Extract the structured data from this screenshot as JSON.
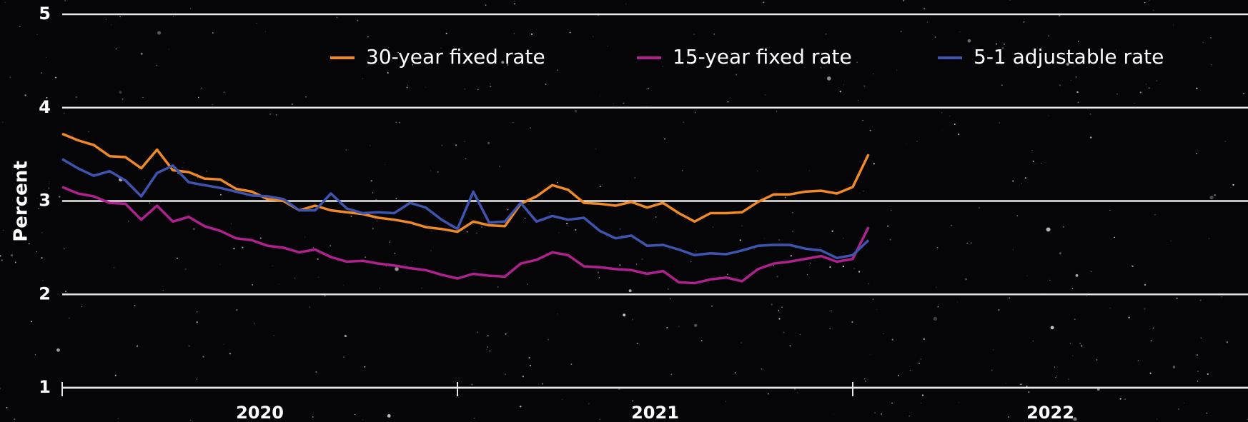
{
  "chart_data": {
    "type": "line",
    "y_label": "Percent",
    "x": [
      2020.0,
      2020.04,
      2020.08,
      2020.12,
      2020.16,
      2020.2,
      2020.24,
      2020.28,
      2020.32,
      2020.36,
      2020.4,
      2020.44,
      2020.48,
      2020.52,
      2020.56,
      2020.6,
      2020.64,
      2020.68,
      2020.72,
      2020.76,
      2020.8,
      2020.84,
      2020.88,
      2020.92,
      2020.96,
      2021.0,
      2021.04,
      2021.08,
      2021.12,
      2021.16,
      2021.2,
      2021.24,
      2021.28,
      2021.32,
      2021.36,
      2021.4,
      2021.44,
      2021.48,
      2021.52,
      2021.56,
      2021.6,
      2021.64,
      2021.68,
      2021.72,
      2021.76,
      2021.8,
      2021.84,
      2021.88,
      2021.92,
      2021.96,
      2022.0,
      2022.04
    ],
    "series": [
      {
        "name": "30-year fixed rate",
        "color": "#f08a24",
        "values": [
          3.72,
          3.65,
          3.6,
          3.48,
          3.47,
          3.35,
          3.55,
          3.33,
          3.31,
          3.24,
          3.23,
          3.13,
          3.1,
          3.02,
          3.0,
          2.9,
          2.95,
          2.9,
          2.88,
          2.86,
          2.82,
          2.8,
          2.77,
          2.72,
          2.7,
          2.67,
          2.78,
          2.74,
          2.73,
          2.97,
          3.05,
          3.17,
          3.12,
          2.98,
          2.97,
          2.95,
          2.99,
          2.93,
          2.98,
          2.87,
          2.78,
          2.87,
          2.87,
          2.88,
          2.99,
          3.07,
          3.07,
          3.1,
          3.11,
          3.08,
          3.15,
          3.5
        ]
      },
      {
        "name": "15-year fixed rate",
        "color": "#b0208f",
        "values": [
          3.15,
          3.08,
          3.05,
          2.98,
          2.97,
          2.8,
          2.95,
          2.78,
          2.83,
          2.73,
          2.68,
          2.6,
          2.58,
          2.52,
          2.5,
          2.45,
          2.48,
          2.4,
          2.35,
          2.36,
          2.33,
          2.31,
          2.28,
          2.26,
          2.21,
          2.17,
          2.22,
          2.2,
          2.19,
          2.33,
          2.37,
          2.45,
          2.42,
          2.3,
          2.29,
          2.27,
          2.26,
          2.22,
          2.25,
          2.13,
          2.12,
          2.16,
          2.18,
          2.14,
          2.27,
          2.33,
          2.35,
          2.38,
          2.41,
          2.35,
          2.38,
          2.72
        ]
      },
      {
        "name": "5-1 adjustable rate",
        "color": "#3d55b0",
        "values": [
          3.45,
          3.35,
          3.27,
          3.32,
          3.22,
          3.05,
          3.3,
          3.38,
          3.2,
          3.17,
          3.14,
          3.1,
          3.06,
          3.05,
          3.02,
          2.9,
          2.9,
          3.08,
          2.92,
          2.87,
          2.88,
          2.87,
          2.98,
          2.93,
          2.8,
          2.7,
          3.1,
          2.77,
          2.78,
          2.98,
          2.78,
          2.84,
          2.8,
          2.82,
          2.68,
          2.6,
          2.63,
          2.52,
          2.53,
          2.48,
          2.42,
          2.44,
          2.43,
          2.47,
          2.52,
          2.53,
          2.53,
          2.49,
          2.47,
          2.39,
          2.42,
          2.58
        ]
      }
    ],
    "xlim": [
      2020,
      2023
    ],
    "xticks": [
      2020,
      2021,
      2022
    ],
    "ylim": [
      1,
      5
    ],
    "yticks": [
      1,
      2,
      3,
      4,
      5
    ],
    "grid": true
  }
}
